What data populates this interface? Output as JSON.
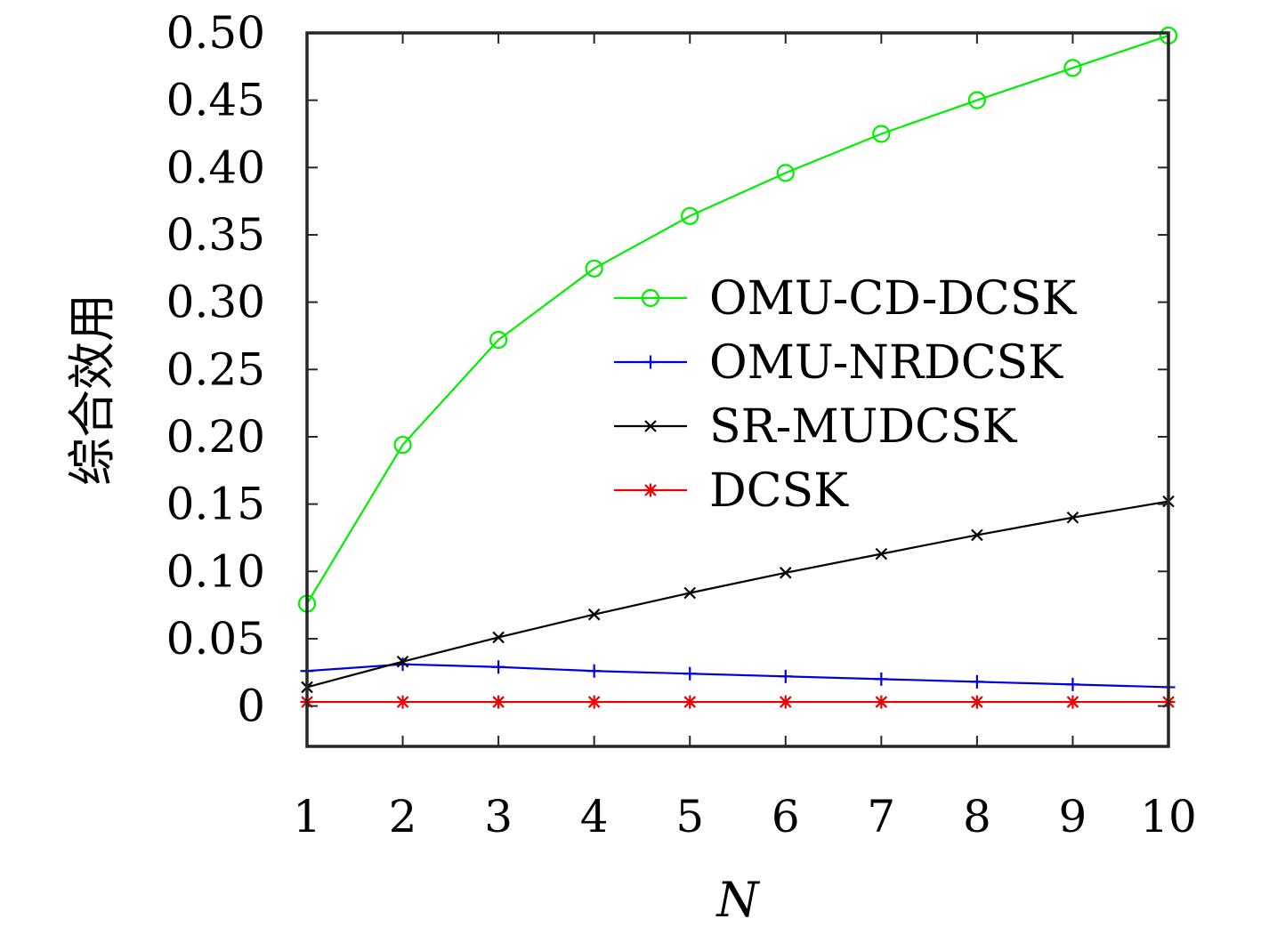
{
  "chart_data": {
    "type": "line",
    "title": "",
    "xlabel": "N",
    "ylabel": "综合效用",
    "x": [
      1,
      2,
      3,
      4,
      5,
      6,
      7,
      8,
      9,
      10
    ],
    "xlim": [
      1,
      10
    ],
    "ylim": [
      -0.03,
      0.5
    ],
    "x_ticks": [
      "1",
      "2",
      "3",
      "4",
      "5",
      "6",
      "7",
      "8",
      "9",
      "10"
    ],
    "y_ticks": [
      "0",
      "0.05",
      "0.10",
      "0.15",
      "0.20",
      "0.25",
      "0.30",
      "0.35",
      "0.40",
      "0.45",
      "0.50"
    ],
    "y_tick_values": [
      0,
      0.05,
      0.1,
      0.15,
      0.2,
      0.25,
      0.3,
      0.35,
      0.4,
      0.45,
      0.5
    ],
    "grid": false,
    "legend_position": "right-middle",
    "series": [
      {
        "name": "OMU-CD-DCSK",
        "color": "#00ee00",
        "marker": "circle",
        "values": [
          0.076,
          0.194,
          0.272,
          0.325,
          0.364,
          0.396,
          0.425,
          0.45,
          0.474,
          0.498
        ]
      },
      {
        "name": "OMU-NRDCSK",
        "color": "#0000dd",
        "marker": "plus",
        "values": [
          0.026,
          0.031,
          0.029,
          0.026,
          0.024,
          0.022,
          0.02,
          0.018,
          0.016,
          0.014
        ]
      },
      {
        "name": "SR-MUDCSK",
        "color": "#000000",
        "marker": "x",
        "values": [
          0.014,
          0.033,
          0.051,
          0.068,
          0.084,
          0.099,
          0.113,
          0.127,
          0.14,
          0.152
        ]
      },
      {
        "name": "DCSK",
        "color": "#ee0000",
        "marker": "star",
        "values": [
          0.003,
          0.003,
          0.003,
          0.003,
          0.003,
          0.003,
          0.003,
          0.003,
          0.003,
          0.003
        ]
      }
    ]
  }
}
